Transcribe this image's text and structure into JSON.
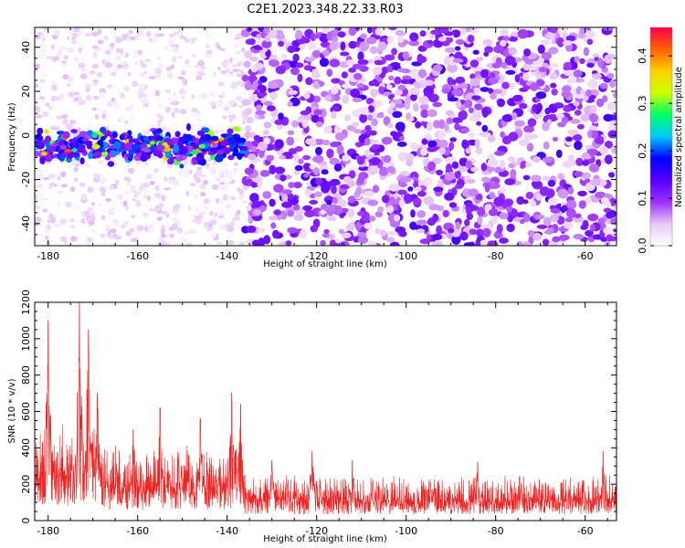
{
  "figure_title": "C2E1.2023.348.22.33.R03",
  "chart_data": [
    {
      "type": "heatmap",
      "title": "",
      "xlabel": "Height of straight line (km)",
      "ylabel": "Frequency (Hz)",
      "xlim": [
        -183,
        -53
      ],
      "ylim": [
        -50,
        49
      ],
      "xticks": [
        -180,
        -160,
        -140,
        -120,
        -100,
        -80,
        -60
      ],
      "yticks": [
        -40,
        -20,
        0,
        20,
        40
      ],
      "colorbar": {
        "label": "Normalized spectral amplitude",
        "range": [
          0,
          0.46
        ],
        "ticks": [
          0.0,
          0.1,
          0.2,
          0.3,
          0.4
        ],
        "colormap": [
          "#ffffff",
          "#e8c8f5",
          "#9b30ff",
          "#5500ff",
          "#0000ff",
          "#00c8ff",
          "#00ff66",
          "#ccff00",
          "#ffd000",
          "#ff6000",
          "#ff0050"
        ]
      },
      "features": [
        {
          "kind": "signal band",
          "x_range": [
            -183,
            -136
          ],
          "freq_center": -5,
          "freq_halfwidth": 6,
          "peak_amplitude": 0.45
        },
        {
          "kind": "weak noise",
          "x_range": [
            -183,
            -136
          ],
          "typical_amplitude": 0.03
        },
        {
          "kind": "strong noise",
          "x_range": [
            -136,
            -53
          ],
          "typical_amplitude": 0.07
        }
      ]
    },
    {
      "type": "line",
      "title": "",
      "xlabel": "Height of straight line (km)",
      "ylabel": "SNR (10 * v/v)",
      "xlim": [
        -183,
        -53
      ],
      "ylim": [
        0,
        1200
      ],
      "xticks": [
        -180,
        -160,
        -140,
        -120,
        -100,
        -80,
        -60
      ],
      "yticks": [
        0,
        200,
        400,
        600,
        800,
        1000,
        1200
      ],
      "line_color": "#ee2222",
      "segments": [
        {
          "x_range": [
            -183,
            -168
          ],
          "baseline": 230,
          "typical_max": 480,
          "peaks": [
            {
              "x": -180,
              "y": 1100
            },
            {
              "x": -173,
              "y": 1200
            },
            {
              "x": -171,
              "y": 1050
            },
            {
              "x": -169,
              "y": 700
            },
            {
              "x": -167,
              "y": 660
            }
          ]
        },
        {
          "x_range": [
            -168,
            -136
          ],
          "baseline": 170,
          "typical_max": 380,
          "peaks": [
            {
              "x": -161,
              "y": 500
            },
            {
              "x": -155,
              "y": 620
            },
            {
              "x": -146,
              "y": 560
            },
            {
              "x": -139,
              "y": 700
            },
            {
              "x": -137,
              "y": 640
            }
          ]
        },
        {
          "x_range": [
            -136,
            -53
          ],
          "baseline": 100,
          "typical_max": 230,
          "peaks": [
            {
              "x": -130,
              "y": 330
            },
            {
              "x": -121,
              "y": 380
            },
            {
              "x": -112,
              "y": 330
            },
            {
              "x": -84,
              "y": 320
            },
            {
              "x": -56,
              "y": 380
            }
          ]
        }
      ]
    }
  ]
}
